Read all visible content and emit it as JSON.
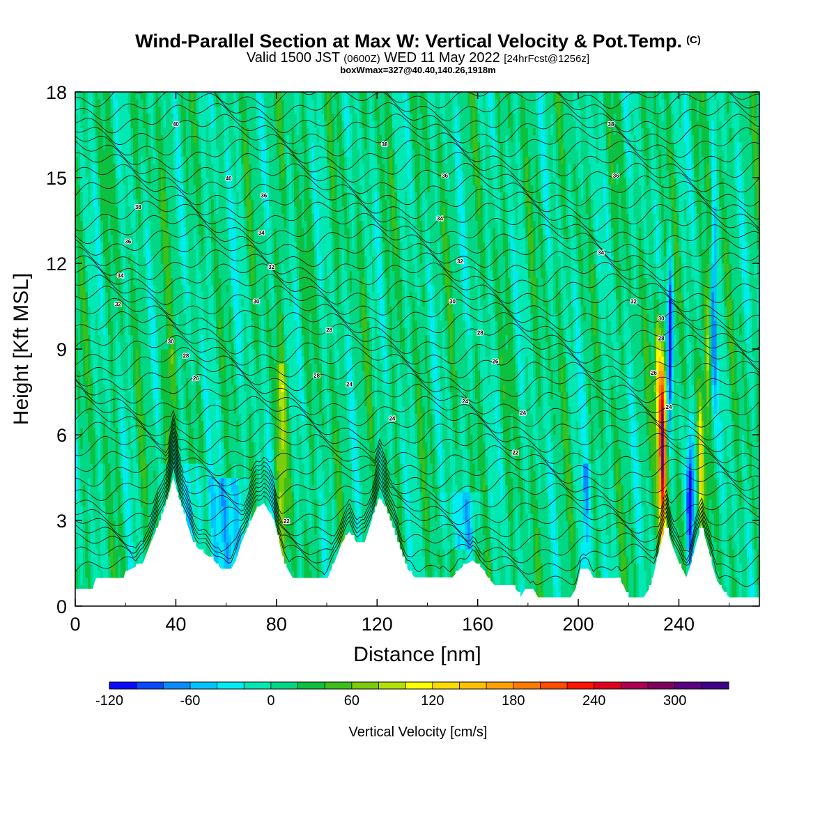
{
  "header": {
    "title": "Wind-Parallel Section at Max W: Vertical Velocity & Pot.Temp.",
    "title_tag": "(C)",
    "valid_prefix": "Valid 1500 JST",
    "valid_utc": "(0600Z)",
    "valid_date": "WED 11 May 2022",
    "valid_fcst": "[24hrFcst@1256z]",
    "boxline": "boxWmax=327@40.40,140.26,1918m"
  },
  "chart_data": {
    "type": "heatmap",
    "xlabel": "Distance [nm]",
    "ylabel": "Height [Kft MSL]",
    "xlim": [
      0,
      272
    ],
    "ylim": [
      0,
      18
    ],
    "xticks": [
      "0",
      "40",
      "80",
      "120",
      "160",
      "200",
      "240"
    ],
    "yticks": [
      "0",
      "3",
      "6",
      "9",
      "12",
      "15",
      "18"
    ],
    "colorbar": {
      "label": "Vertical Velocity [cm/s]",
      "tick_labels": [
        "-120",
        "-60",
        "0",
        "60",
        "120",
        "180",
        "240",
        "300"
      ],
      "ticks": [
        -120,
        -60,
        0,
        60,
        120,
        180,
        240,
        300
      ],
      "min": -120,
      "max": 340,
      "step": 20,
      "colors": [
        "#0a0aff",
        "#0a4aff",
        "#0a8cff",
        "#00c4ff",
        "#00ecf4",
        "#00e8b4",
        "#00d886",
        "#0cc040",
        "#3cc018",
        "#7ccc0a",
        "#b4e00a",
        "#ffff00",
        "#ffdc00",
        "#ffc000",
        "#ffa000",
        "#ff7a00",
        "#ff4c00",
        "#ff1400",
        "#e0001e",
        "#b00050",
        "#800060",
        "#5a0082",
        "#40008a"
      ]
    },
    "terrain_kft": [
      [
        0,
        0.6
      ],
      [
        7,
        0.6
      ],
      [
        8,
        0.9
      ],
      [
        19,
        0.9
      ],
      [
        20,
        1.2
      ],
      [
        27,
        1.5
      ],
      [
        30,
        2.2
      ],
      [
        34,
        3.0
      ],
      [
        37,
        3.8
      ],
      [
        39,
        4.5
      ],
      [
        41,
        3.8
      ],
      [
        44,
        3.0
      ],
      [
        47,
        2.2
      ],
      [
        49,
        2.0
      ],
      [
        52,
        1.8
      ],
      [
        55,
        1.6
      ],
      [
        58,
        1.3
      ],
      [
        62,
        1.3
      ],
      [
        64,
        1.6
      ],
      [
        66,
        2.2
      ],
      [
        69,
        2.8
      ],
      [
        72,
        3.4
      ],
      [
        75,
        3.6
      ],
      [
        79,
        3.0
      ],
      [
        83,
        1.5
      ],
      [
        85,
        1.2
      ],
      [
        87,
        0.9
      ],
      [
        100,
        0.9
      ],
      [
        103,
        1.5
      ],
      [
        106,
        2.2
      ],
      [
        109,
        2.6
      ],
      [
        112,
        2.2
      ],
      [
        115,
        2.2
      ],
      [
        118,
        3.0
      ],
      [
        121,
        3.8
      ],
      [
        123,
        3.5
      ],
      [
        126,
        2.8
      ],
      [
        129,
        2.0
      ],
      [
        132,
        1.3
      ],
      [
        135,
        1.0
      ],
      [
        150,
        1.0
      ],
      [
        153,
        1.3
      ],
      [
        158,
        1.6
      ],
      [
        162,
        1.3
      ],
      [
        164,
        1.0
      ],
      [
        167,
        0.7
      ],
      [
        174,
        0.7
      ],
      [
        176,
        0.5
      ],
      [
        177,
        0.3
      ],
      [
        179,
        0.6
      ],
      [
        182,
        0.6
      ],
      [
        184,
        0.3
      ],
      [
        197,
        0.3
      ],
      [
        199,
        0.6
      ],
      [
        201,
        1.3
      ],
      [
        204,
        1.3
      ],
      [
        206,
        1.0
      ],
      [
        211,
        0.9
      ],
      [
        216,
        1.0
      ],
      [
        218,
        0.7
      ],
      [
        220,
        0.3
      ],
      [
        226,
        0.3
      ],
      [
        229,
        0.7
      ],
      [
        231,
        1.5
      ],
      [
        233,
        2.2
      ],
      [
        235,
        2.8
      ],
      [
        237,
        2.2
      ],
      [
        240,
        1.5
      ],
      [
        243,
        1.0
      ],
      [
        245,
        1.5
      ],
      [
        247,
        2.2
      ],
      [
        249,
        2.8
      ],
      [
        251,
        2.2
      ],
      [
        253,
        1.5
      ],
      [
        255,
        0.9
      ],
      [
        258,
        0.5
      ],
      [
        260,
        0.3
      ],
      [
        272,
        0.3
      ]
    ],
    "contour_labels_K": [
      "40",
      "40",
      "38",
      "38",
      "38",
      "36",
      "36",
      "36",
      "36",
      "34",
      "34",
      "34",
      "34",
      "32",
      "32",
      "32",
      "32",
      "30",
      "30",
      "30",
      "30",
      "28",
      "28",
      "28",
      "28",
      "28",
      "26",
      "26",
      "26",
      "24",
      "24",
      "24",
      "24",
      "24",
      "22",
      "22"
    ],
    "colorbar_range": [
      -120,
      340
    ]
  }
}
